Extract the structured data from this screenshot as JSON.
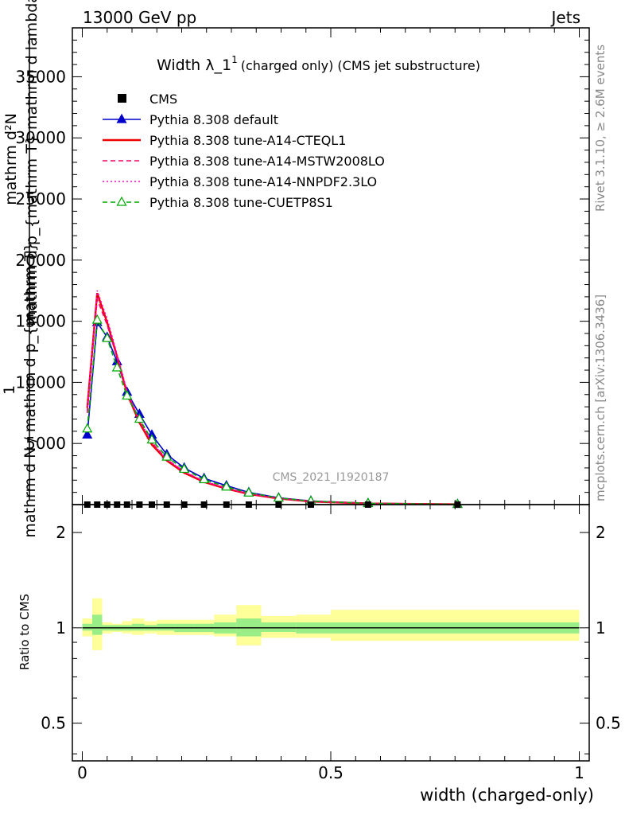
{
  "header": {
    "left": "13000 GeV pp",
    "right": "Jets"
  },
  "side_text": {
    "rivet": "Rivet 3.1.10, ≥ 2.6M events",
    "mcplots": "mcplots.cern.ch [arXiv:1306.3436]"
  },
  "watermark": "CMS_2021_I1920187",
  "chart_data": [
    {
      "type": "line",
      "panel": "main",
      "title_main": "Width λ_1",
      "title_sup": "1",
      "title_rest": "(charged only) (CMS jet substructure)",
      "ylabel_lines": [
        "mathrm d²N",
        "mathrm d p_{mathrm T} mathrm d lambda",
        "1",
        "mathrm d N / mathrm d p_{mathrm T}"
      ],
      "xlim": [
        -0.02,
        1.02
      ],
      "ylim": [
        0,
        39000
      ],
      "xticks": [
        0,
        0.5,
        1
      ],
      "yticks": [
        5000,
        10000,
        15000,
        20000,
        25000,
        30000,
        35000
      ],
      "ytick_labels": [
        "5000",
        "10000",
        "15000",
        "20000",
        "25000",
        "30000",
        "35000"
      ],
      "legend_position": "top-left",
      "series": [
        {
          "name": "CMS",
          "style": "data",
          "color": "#000000",
          "x": [
            0.01,
            0.03,
            0.05,
            0.07,
            0.09,
            0.115,
            0.14,
            0.17,
            0.205,
            0.245,
            0.29,
            0.335,
            0.395,
            0.46,
            0.575,
            0.755
          ],
          "y": [
            0,
            0,
            0,
            0,
            0,
            0,
            0,
            0,
            0,
            0,
            0,
            0,
            0,
            0,
            0,
            0
          ]
        },
        {
          "name": "Pythia 8.308 default",
          "style": "solid",
          "marker": "triangle-filled",
          "color": "#0000cc",
          "x": [
            0.01,
            0.03,
            0.05,
            0.07,
            0.09,
            0.115,
            0.14,
            0.17,
            0.205,
            0.245,
            0.29,
            0.335,
            0.395,
            0.46,
            0.575,
            0.755
          ],
          "y": [
            5700,
            14900,
            13700,
            11700,
            9200,
            7400,
            5700,
            4100,
            3000,
            2150,
            1550,
            1000,
            560,
            300,
            110,
            30
          ]
        },
        {
          "name": "Pythia 8.308 tune-A14-CTEQL1",
          "style": "solid",
          "color": "#ee0000",
          "x": [
            0.01,
            0.03,
            0.05,
            0.07,
            0.09,
            0.115,
            0.14,
            0.17,
            0.205,
            0.245,
            0.29,
            0.335,
            0.395,
            0.46,
            0.575,
            0.755
          ],
          "y": [
            7900,
            17300,
            14900,
            12100,
            9100,
            6700,
            4900,
            3600,
            2600,
            1850,
            1300,
            870,
            490,
            250,
            90,
            25
          ]
        },
        {
          "name": "Pythia 8.308 tune-A14-MSTW2008LO",
          "style": "dashed",
          "color": "#ff0066",
          "x": [
            0.01,
            0.03,
            0.05,
            0.07,
            0.09,
            0.115,
            0.14,
            0.17,
            0.205,
            0.245,
            0.29,
            0.335,
            0.395,
            0.46,
            0.575,
            0.755
          ],
          "y": [
            7500,
            16800,
            14700,
            12000,
            9200,
            6900,
            5100,
            3700,
            2700,
            1900,
            1350,
            900,
            500,
            260,
            95,
            27
          ]
        },
        {
          "name": "Pythia 8.308 tune-A14-NNPDF2.3LO",
          "style": "dotted",
          "color": "#ff00cc",
          "x": [
            0.01,
            0.03,
            0.05,
            0.07,
            0.09,
            0.115,
            0.14,
            0.17,
            0.205,
            0.245,
            0.29,
            0.335,
            0.395,
            0.46,
            0.575,
            0.755
          ],
          "y": [
            7700,
            17500,
            15200,
            12300,
            9300,
            6900,
            5100,
            3700,
            2700,
            1900,
            1330,
            890,
            500,
            255,
            92,
            26
          ]
        },
        {
          "name": "Pythia 8.308 tune-CUETP8S1",
          "style": "dashed",
          "marker": "triangle-open",
          "color": "#00aa00",
          "x": [
            0.01,
            0.03,
            0.05,
            0.07,
            0.09,
            0.115,
            0.14,
            0.17,
            0.205,
            0.245,
            0.29,
            0.335,
            0.395,
            0.46,
            0.575,
            0.755
          ],
          "y": [
            6200,
            15100,
            13600,
            11200,
            8900,
            7000,
            5300,
            3900,
            2900,
            2050,
            1450,
            960,
            540,
            280,
            100,
            28
          ]
        }
      ]
    },
    {
      "type": "area",
      "panel": "ratio",
      "ylabel": "Ratio to CMS",
      "xlabel": "width (charged-only)",
      "xlim": [
        -0.02,
        1.02
      ],
      "ylim": [
        0.38,
        2.45
      ],
      "scale": "log",
      "xticks": [
        0,
        0.5,
        1
      ],
      "xtick_labels": [
        "0",
        "0.5",
        "1"
      ],
      "yticks": [
        0.5,
        1,
        2
      ],
      "ytick_labels": [
        "0.5",
        "1",
        "2"
      ],
      "bins": [
        0,
        0.02,
        0.04,
        0.06,
        0.08,
        0.1,
        0.125,
        0.15,
        0.185,
        0.225,
        0.265,
        0.31,
        0.36,
        0.43,
        0.5,
        1.0
      ],
      "stat_band": [
        [
          0.98,
          1.03
        ],
        [
          0.95,
          1.1
        ],
        [
          0.98,
          1.02
        ],
        [
          0.98,
          1.02
        ],
        [
          0.98,
          1.02
        ],
        [
          0.98,
          1.03
        ],
        [
          0.98,
          1.02
        ],
        [
          0.98,
          1.03
        ],
        [
          0.97,
          1.03
        ],
        [
          0.97,
          1.03
        ],
        [
          0.96,
          1.04
        ],
        [
          0.94,
          1.07
        ],
        [
          0.97,
          1.04
        ],
        [
          0.96,
          1.04
        ],
        [
          0.96,
          1.04
        ]
      ],
      "total_band": [
        [
          0.94,
          1.07
        ],
        [
          0.85,
          1.24
        ],
        [
          0.96,
          1.04
        ],
        [
          0.97,
          1.03
        ],
        [
          0.96,
          1.05
        ],
        [
          0.95,
          1.07
        ],
        [
          0.96,
          1.05
        ],
        [
          0.95,
          1.06
        ],
        [
          0.95,
          1.06
        ],
        [
          0.95,
          1.06
        ],
        [
          0.94,
          1.1
        ],
        [
          0.88,
          1.18
        ],
        [
          0.93,
          1.09
        ],
        [
          0.93,
          1.1
        ],
        [
          0.91,
          1.14
        ]
      ],
      "colors": {
        "stat": "#99ee88",
        "total": "#ffff99"
      }
    }
  ]
}
